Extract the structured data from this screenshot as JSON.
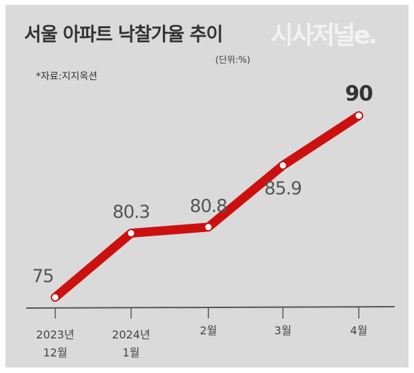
{
  "chart_data": {
    "type": "line",
    "title": "서울 아파트 낙찰가율 추이",
    "unit_note": "(단위:%)",
    "source": "*자료:지지옥션",
    "watermark": "시사저널e.",
    "categories": [
      [
        "2023년",
        "12월"
      ],
      [
        "2024년",
        "1월"
      ],
      [
        "2월"
      ],
      [
        "3월"
      ],
      [
        "4월"
      ]
    ],
    "values": [
      75,
      80.3,
      80.8,
      85.9,
      90
    ],
    "labels": [
      "75",
      "80.3",
      "80.8",
      "85.9",
      "90"
    ],
    "ylim": [
      74,
      91
    ],
    "grid": false,
    "line_color": "#cc1010",
    "axis_color": "#555555"
  }
}
